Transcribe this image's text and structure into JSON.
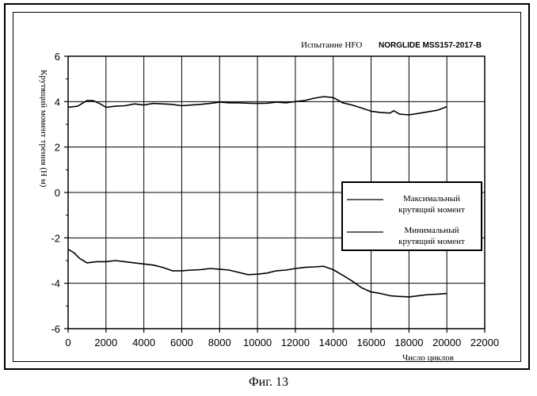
{
  "caption": "Фиг. 13",
  "chart_data": {
    "type": "line",
    "title": "Испытание HFO",
    "subtitle": "NORGLIDE MSS157-2017-B",
    "xlabel": "Число циклов",
    "ylabel": "Крутящий момент трения (Н м)",
    "xlim": [
      0,
      22000
    ],
    "ylim": [
      -6,
      6
    ],
    "x_ticks": [
      0,
      2000,
      4000,
      6000,
      8000,
      10000,
      12000,
      14000,
      16000,
      18000,
      20000,
      22000
    ],
    "y_ticks": [
      -6,
      -4,
      -2,
      0,
      2,
      4,
      6
    ],
    "grid": true,
    "legend_position": "center-right",
    "series": [
      {
        "name": "Максимальный крутящий момент",
        "legend_lines": [
          "Максимальный",
          "крутящий момент"
        ],
        "x": [
          0,
          500,
          1000,
          1300,
          1700,
          2000,
          2500,
          3000,
          3500,
          4000,
          4500,
          5000,
          5500,
          6000,
          6500,
          7000,
          7500,
          8000,
          8500,
          9000,
          9500,
          10000,
          10500,
          11000,
          11500,
          12000,
          12500,
          13000,
          13500,
          14000,
          14500,
          15000,
          15500,
          16000,
          16500,
          17000,
          17200,
          17500,
          18000,
          18500,
          19000,
          19500,
          20000
        ],
        "values": [
          3.75,
          3.8,
          4.05,
          4.05,
          3.9,
          3.75,
          3.8,
          3.82,
          3.9,
          3.85,
          3.92,
          3.9,
          3.88,
          3.82,
          3.85,
          3.88,
          3.92,
          3.98,
          3.95,
          3.95,
          3.93,
          3.92,
          3.93,
          3.98,
          3.95,
          4.0,
          4.05,
          4.15,
          4.22,
          4.18,
          3.95,
          3.85,
          3.72,
          3.58,
          3.52,
          3.5,
          3.6,
          3.45,
          3.42,
          3.48,
          3.55,
          3.62,
          3.78
        ]
      },
      {
        "name": "Минимальный крутящий момент",
        "legend_lines": [
          "Минимальный",
          "крутящий момент"
        ],
        "x": [
          0,
          300,
          600,
          1000,
          1500,
          2000,
          2500,
          3000,
          3500,
          4000,
          4500,
          5000,
          5500,
          6000,
          6500,
          7000,
          7500,
          8000,
          8500,
          9000,
          9500,
          10000,
          10500,
          11000,
          11500,
          12000,
          12500,
          13000,
          13500,
          14000,
          14500,
          15000,
          15500,
          16000,
          16500,
          17000,
          17500,
          18000,
          18500,
          19000,
          19500,
          20000
        ],
        "values": [
          -2.5,
          -2.65,
          -2.9,
          -3.1,
          -3.05,
          -3.05,
          -3.0,
          -3.05,
          -3.1,
          -3.15,
          -3.2,
          -3.3,
          -3.45,
          -3.45,
          -3.42,
          -3.4,
          -3.35,
          -3.38,
          -3.42,
          -3.52,
          -3.62,
          -3.6,
          -3.55,
          -3.45,
          -3.42,
          -3.35,
          -3.3,
          -3.28,
          -3.25,
          -3.4,
          -3.65,
          -3.9,
          -4.2,
          -4.38,
          -4.45,
          -4.55,
          -4.58,
          -4.6,
          -4.55,
          -4.5,
          -4.48,
          -4.45
        ]
      }
    ]
  }
}
